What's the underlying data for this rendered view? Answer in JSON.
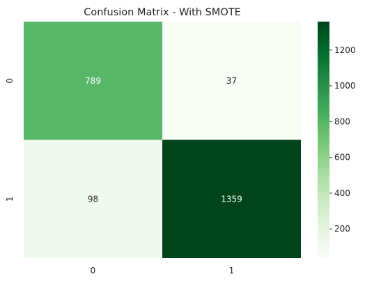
{
  "chart_data": {
    "type": "heatmap",
    "title": "Confusion Matrix - With SMOTE",
    "xlabel": "",
    "ylabel": "",
    "x_categories": [
      "0",
      "1"
    ],
    "y_categories": [
      "0",
      "1"
    ],
    "values": [
      [
        789,
        37
      ],
      [
        98,
        1359
      ]
    ],
    "colormap": "Greens",
    "vmin": 37,
    "vmax": 1359,
    "colorbar_ticks": [
      200,
      400,
      600,
      800,
      1000,
      1200
    ],
    "colors": {
      "low": "#f7fcf5",
      "high": "#00441b"
    }
  }
}
